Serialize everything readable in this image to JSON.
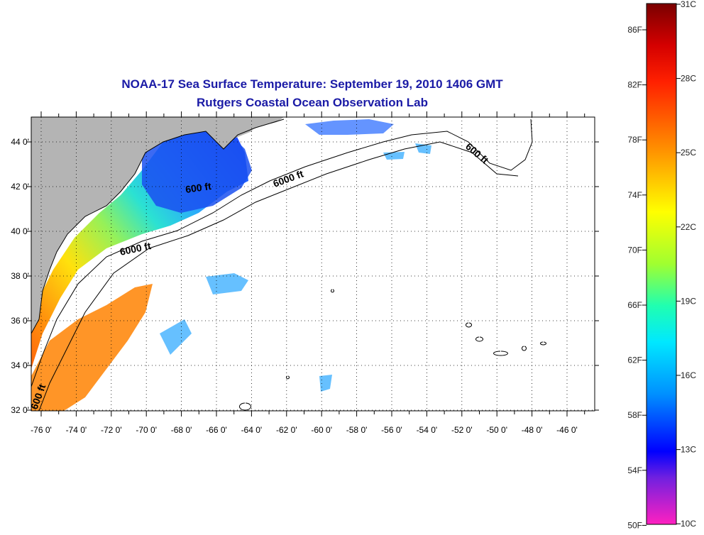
{
  "title": {
    "line1": "NOAA-17 Sea Surface Temperature:  September 19, 2010 1406 GMT",
    "line2": "Rutgers Coastal Ocean Observation Lab"
  },
  "map": {
    "lon_ticks": [
      "-76 0'",
      "-74 0'",
      "-72 0'",
      "-70 0'",
      "-68 0'",
      "-66 0'",
      "-64 0'",
      "-62 0'",
      "-60 0'",
      "-58 0'",
      "-56 0'",
      "-54 0'",
      "-52 0'",
      "-50 0'",
      "-48 0'",
      "-46 0'"
    ],
    "lat_ticks": [
      "44 0'",
      "42 0'",
      "40 0'",
      "38 0'",
      "36 0'",
      "34 0'",
      "32 0'"
    ],
    "contour_labels": [
      "600 ft",
      "6000 ft",
      "6000 ft",
      "600 ft",
      "600 ft"
    ],
    "land_color": "#b4b4b4",
    "ocean_color": "#ffffff"
  },
  "colorbar": {
    "fahrenheit_labels": [
      "86F",
      "82F",
      "78F",
      "74F",
      "70F",
      "66F",
      "62F",
      "58F",
      "54F",
      "50F"
    ],
    "celsius_labels": [
      "31C",
      "28C",
      "25C",
      "22C",
      "19C",
      "16C",
      "13C",
      "10C"
    ]
  }
}
